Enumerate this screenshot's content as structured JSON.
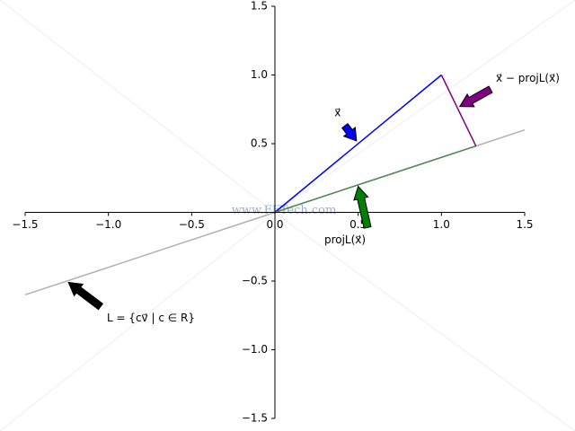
{
  "chart_data": {
    "type": "line",
    "xlim": [
      -1.5,
      1.5
    ],
    "ylim": [
      -1.5,
      1.5
    ],
    "xticks": [
      {
        "value": -1.5,
        "label": "−1.5"
      },
      {
        "value": -1.0,
        "label": "−1.0"
      },
      {
        "value": -0.5,
        "label": "−0.5"
      },
      {
        "value": 0,
        "label": "0.0"
      },
      0.5,
      {
        "value": 1.0,
        "label": "1.0"
      },
      1.5
    ],
    "yticks": [
      {
        "value": -1.5,
        "label": "−1.5"
      },
      {
        "value": -1.0,
        "label": "−1.0"
      },
      {
        "value": -0.5,
        "label": "−0.5"
      },
      0.5,
      {
        "value": 1.0,
        "label": "1.0"
      },
      1.5
    ],
    "series": [
      {
        "color": "#b0b0b0",
        "x": [
          -1.5,
          1.5
        ],
        "y": [
          -0.6,
          0.6
        ]
      },
      {
        "color": "#0000ff",
        "x": [
          0,
          1
        ],
        "y": [
          0,
          1
        ]
      },
      {
        "color": "#4f8a4f",
        "x": [
          0,
          1.207
        ],
        "y": [
          0,
          0.483
        ]
      },
      {
        "color": "#800080",
        "x": [
          1,
          1.207
        ],
        "y": [
          1,
          0.483
        ]
      }
    ],
    "annotations": [
      {
        "text": "x⃗",
        "xy": [
          0.49,
          0.52
        ],
        "xytext": [
          0.42,
          0.63
        ],
        "color": "#0000ff"
      },
      {
        "text": "x⃗ − projL(x⃗)",
        "xy": [
          1.11,
          0.77
        ],
        "xytext": [
          1.295,
          0.895
        ],
        "color": "#800080"
      },
      {
        "text": "projL(x⃗)",
        "xy": [
          0.5,
          0.19
        ],
        "xytext": [
          0.556,
          -0.11
        ],
        "color": "#008000"
      },
      {
        "text": "L = {cv⃗ | c ∈ R}",
        "xy": [
          -1.24,
          -0.51
        ],
        "xytext": [
          -1.047,
          -0.686
        ],
        "color": "#000000"
      }
    ],
    "watermark": "www.FFTech.com"
  }
}
